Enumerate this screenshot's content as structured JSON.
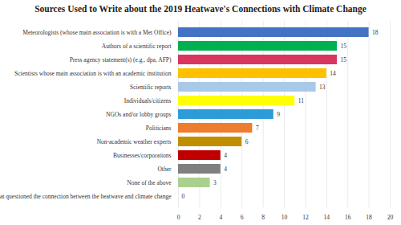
{
  "chart_data": {
    "type": "bar",
    "orientation": "horizontal",
    "title": "Sources Used to Write about the 2019 Heatwave's Connections with Climate Change",
    "categories": [
      "Meteorologists (whose main association is with a Met Office)",
      "Authors of a scientific report",
      "Press agency statement(s) (e.g., dpa, AFP)",
      "Scientists whose main association is with an academic institution",
      "Scientific reports",
      "Individuals/citizens",
      "NGOs and/or lobby groups",
      "Politicians",
      "Non-academic weather experts",
      "Businesses/corporations",
      "Other",
      "None of the above",
      "Any source that questioned the connection between the heatwave and climate change"
    ],
    "values": [
      18,
      15,
      15,
      14,
      13,
      11,
      9,
      7,
      6,
      4,
      4,
      3,
      0
    ],
    "colors": [
      "#4472c4",
      "#00b050",
      "#d9365f",
      "#ffc000",
      "#a9c9e8",
      "#ffff00",
      "#2e9bd9",
      "#ed7d31",
      "#bf8f00",
      "#c00000",
      "#7f7f7f",
      "#a9d18e",
      "#70ad47"
    ],
    "xlim": [
      0,
      20
    ],
    "xticks": [
      0,
      2,
      4,
      6,
      8,
      10,
      12,
      14,
      16,
      18,
      20
    ],
    "grid": true,
    "data_labels": true
  }
}
